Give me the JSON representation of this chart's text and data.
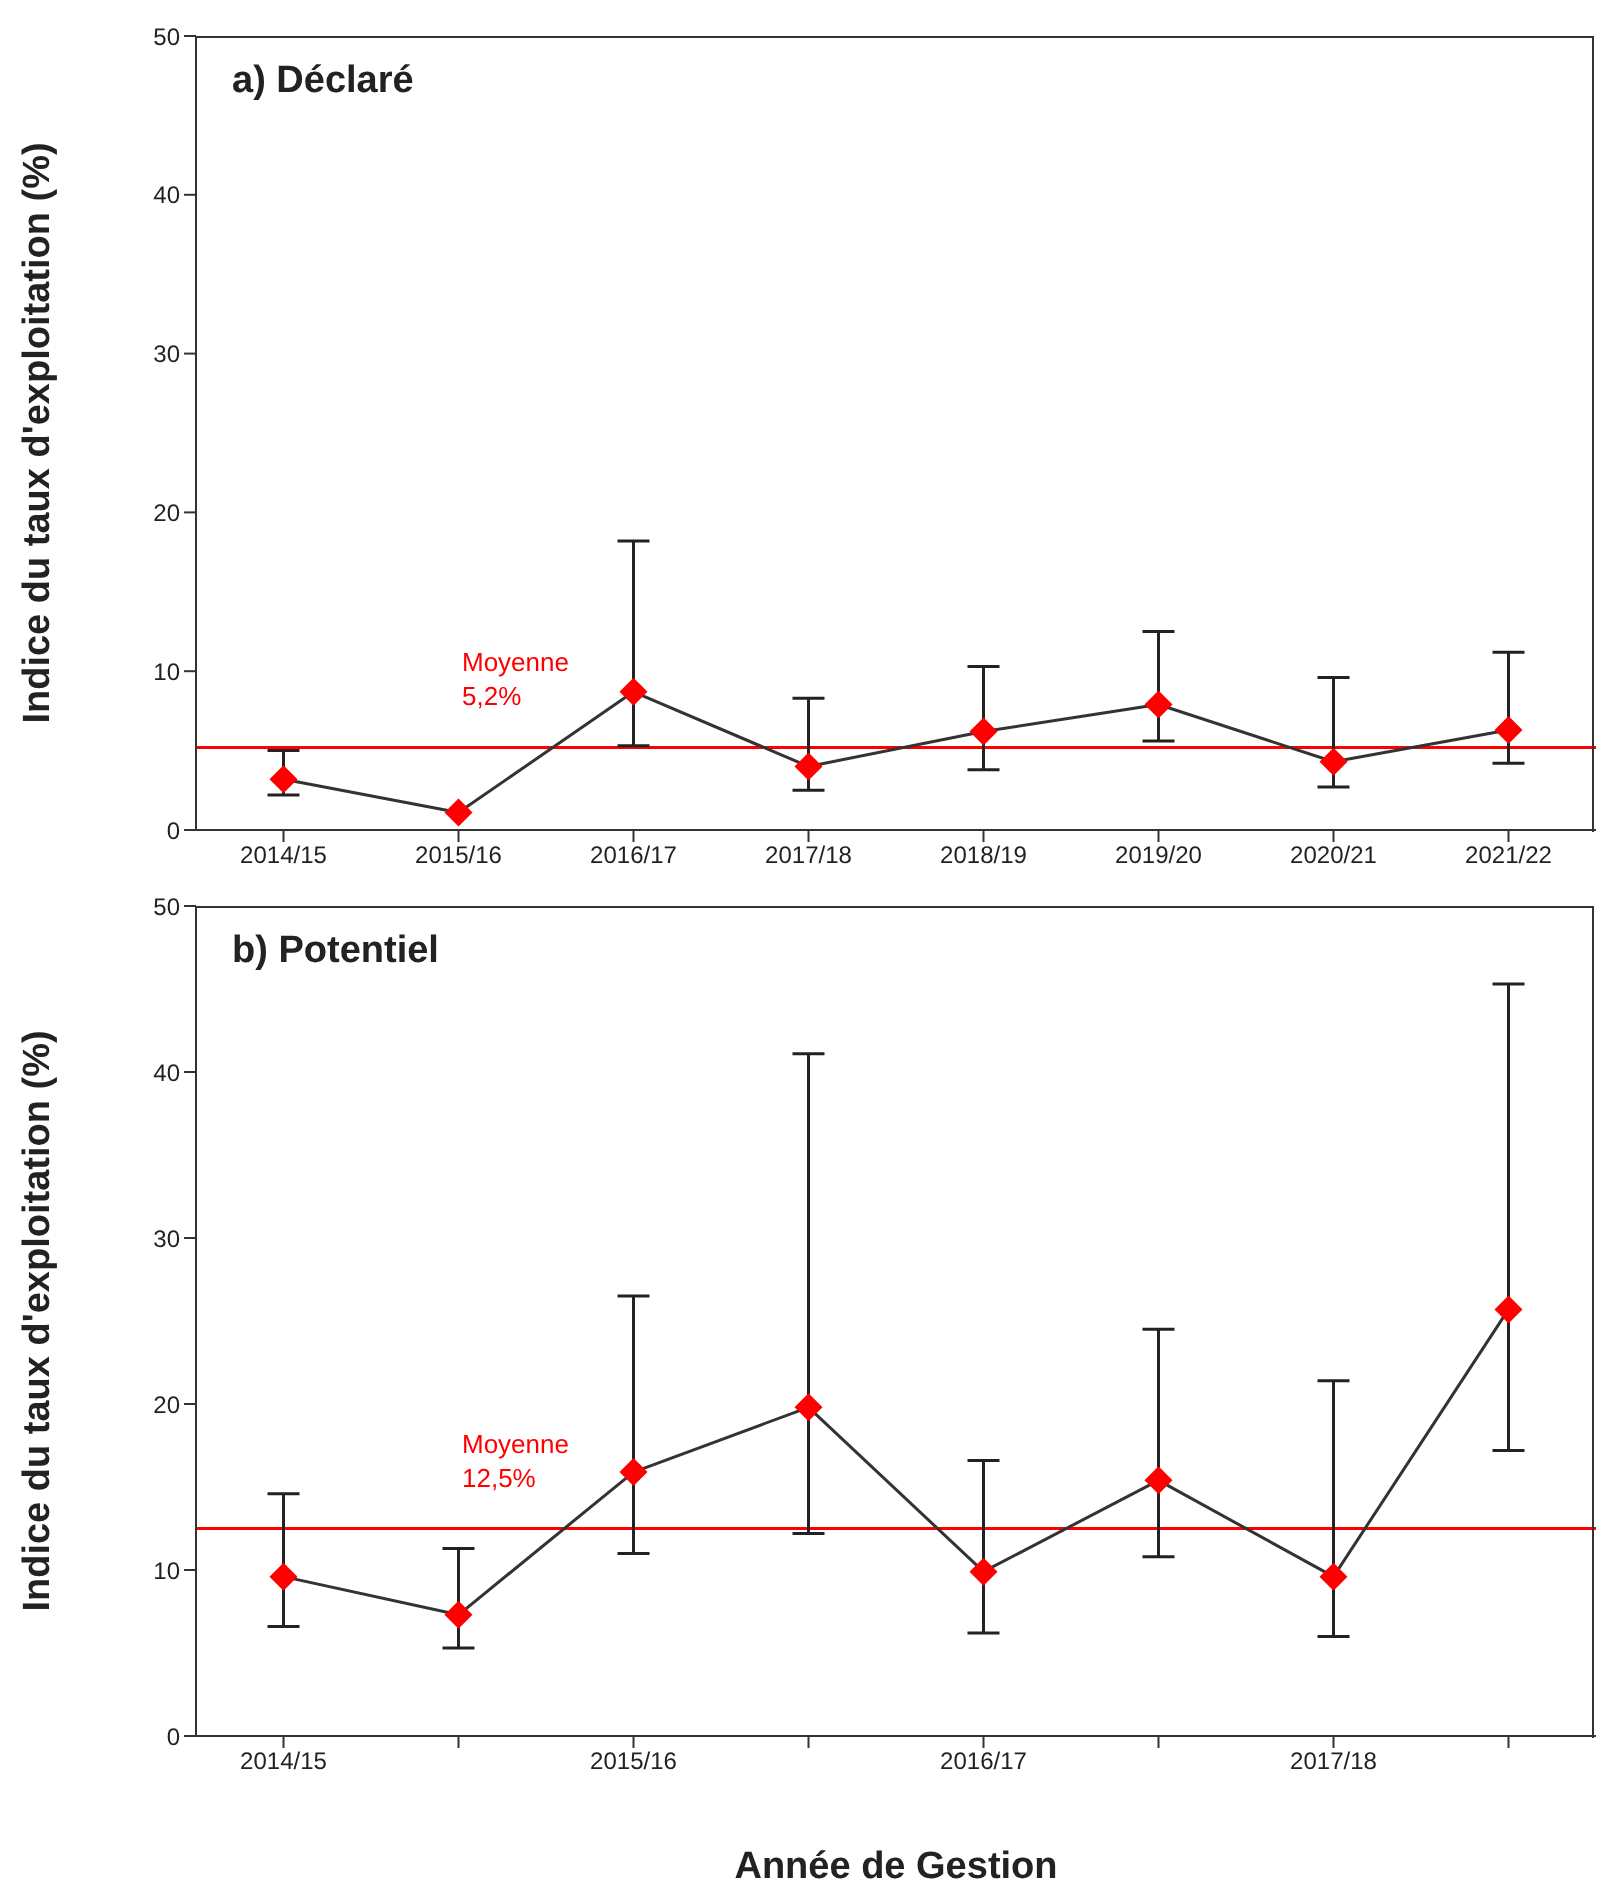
{
  "chart_data": [
    {
      "type": "line",
      "title": "a) Déclaré",
      "ylabel": "Indice du taux d'exploitation (%)",
      "categories": [
        "2014/15",
        "2015/16",
        "2016/17",
        "2017/18",
        "2018/19",
        "2019/20",
        "2020/21",
        "2021/22"
      ],
      "series": [
        {
          "color": "#ff0000",
          "values": [
            3.2,
            1.1,
            8.7,
            4.0,
            6.2,
            7.9,
            4.3,
            6.3
          ],
          "errors": [
            [
              2.2,
              5.0
            ],
            null,
            [
              5.3,
              18.2
            ],
            [
              2.5,
              8.3
            ],
            [
              3.8,
              10.3
            ],
            [
              5.6,
              12.5
            ],
            [
              2.7,
              9.6
            ],
            [
              4.2,
              11.2
            ]
          ]
        }
      ],
      "ylim": [
        0,
        50
      ],
      "yticks": [
        0,
        10,
        20,
        30,
        40,
        50
      ],
      "marker": "diamond",
      "line_style": "solid",
      "grid": false,
      "legend": false,
      "ref_lines": [
        {
          "axis": "y",
          "value": 5.2,
          "label": "Moyenne 5,2%",
          "color": "#ff0000"
        }
      ]
    },
    {
      "type": "line",
      "title": "b) Potentiel",
      "xlabel": "Année de Gestion",
      "ylabel": "Indice du taux d'exploitation (%)",
      "categories": [
        "2014/15",
        null,
        "2015/16",
        null,
        "2016/17",
        null,
        "2017/18",
        null
      ],
      "series": [
        {
          "color": "#ff0000",
          "values": [
            9.6,
            7.3,
            15.9,
            19.8,
            9.9,
            15.4,
            9.6,
            25.7
          ],
          "errors": [
            [
              6.6,
              14.6
            ],
            [
              5.3,
              11.3
            ],
            [
              11.0,
              26.5
            ],
            [
              12.2,
              41.1
            ],
            [
              6.2,
              16.6
            ],
            [
              10.8,
              24.5
            ],
            [
              6.0,
              21.4
            ],
            [
              17.2,
              45.3
            ]
          ]
        }
      ],
      "ylim": [
        0,
        50
      ],
      "yticks": [
        0,
        10,
        20,
        30,
        40,
        50
      ],
      "marker": "diamond",
      "line_style": "solid",
      "grid": false,
      "legend": false,
      "ref_lines": [
        {
          "axis": "y",
          "value": 12.5,
          "label": "Moyenne 12,5%",
          "color": "#ff0000"
        }
      ]
    }
  ]
}
